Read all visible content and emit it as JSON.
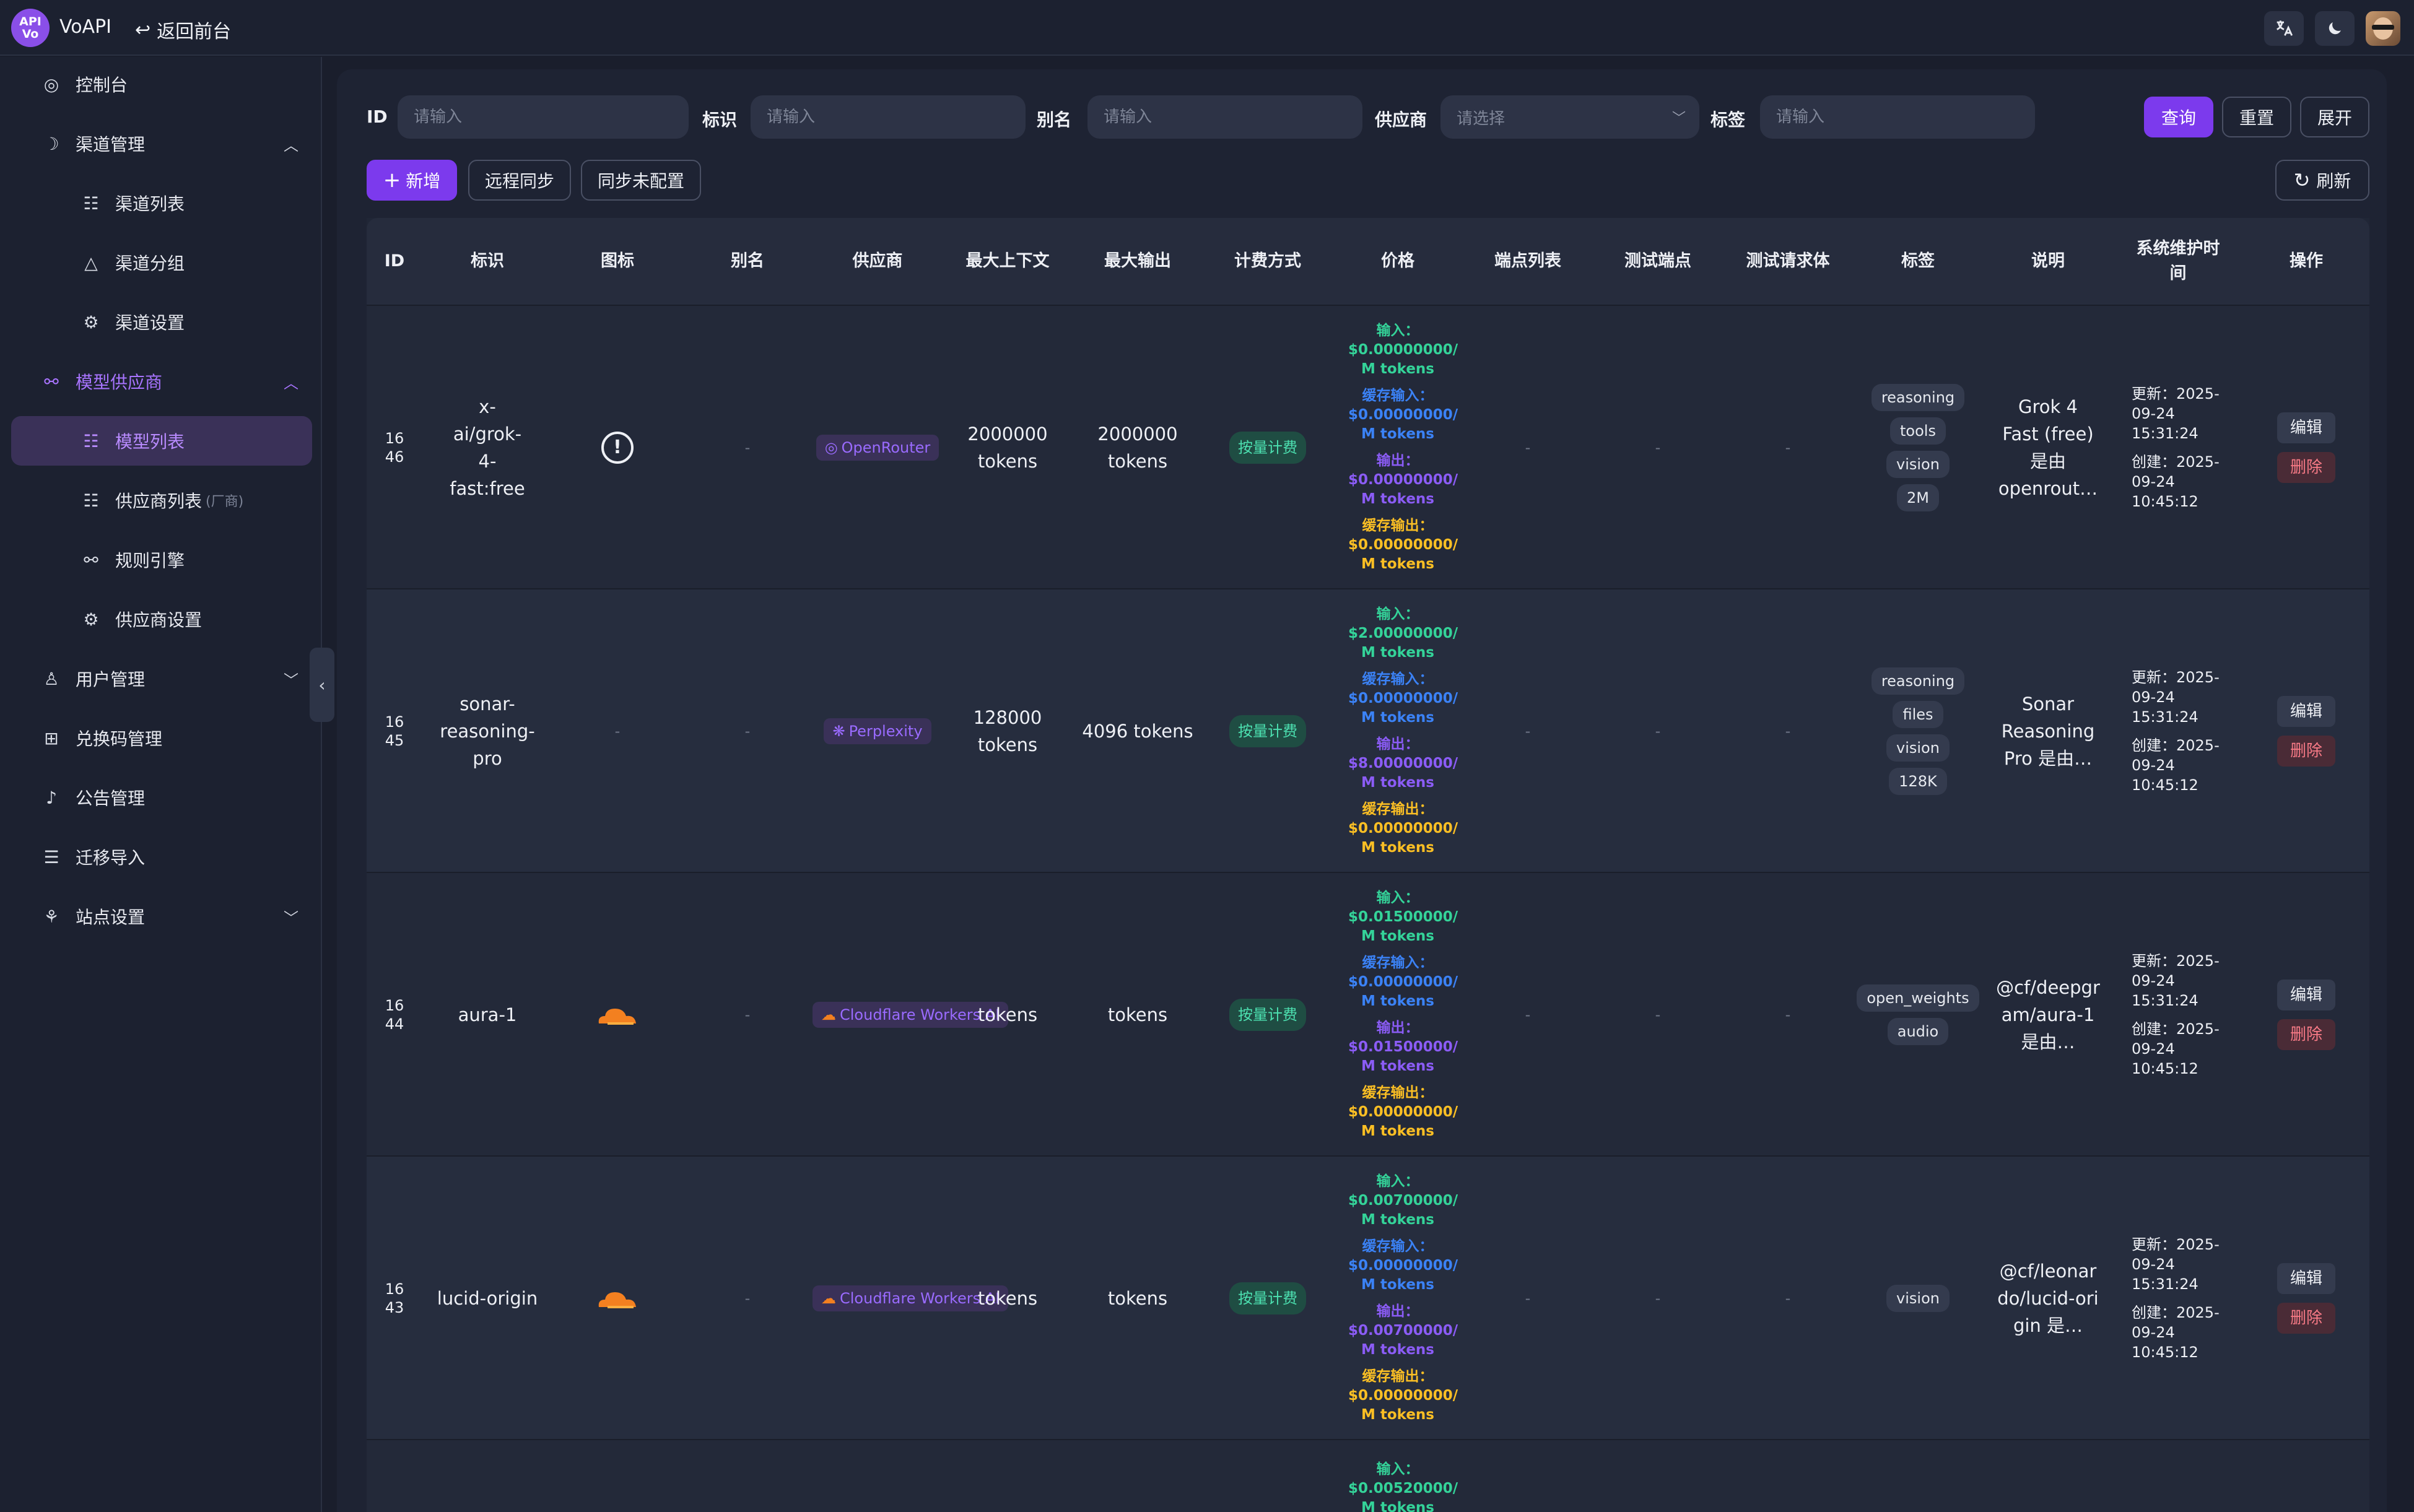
{
  "app": {
    "name": "VoAPI",
    "back_label": "返回前台",
    "logo_text_top": "API",
    "logo_text_bottom": "Vo"
  },
  "topbar": {
    "translate_icon": "translate-icon",
    "theme_icon": "moon-icon"
  },
  "sidebar": {
    "items": [
      {
        "label": "控制台",
        "icon": "dashboard-icon"
      },
      {
        "label": "渠道管理",
        "icon": "channel-icon"
      },
      {
        "label": "渠道列表",
        "icon": "list-icon"
      },
      {
        "label": "渠道分组",
        "icon": "group-icon"
      },
      {
        "label": "渠道设置",
        "icon": "gear-icon"
      },
      {
        "label": "模型供应商",
        "icon": "provider-icon"
      },
      {
        "label": "模型列表",
        "icon": "list-icon"
      },
      {
        "label": "供应商列表",
        "suffix": "(厂商)",
        "icon": "list-icon"
      },
      {
        "label": "规则引擎",
        "icon": "rule-icon"
      },
      {
        "label": "供应商设置",
        "icon": "gear-icon"
      },
      {
        "label": "用户管理",
        "icon": "user-icon"
      },
      {
        "label": "兑换码管理",
        "icon": "gift-icon"
      },
      {
        "label": "公告管理",
        "icon": "bell-icon"
      },
      {
        "label": "迁移导入",
        "icon": "database-icon"
      },
      {
        "label": "站点设置",
        "icon": "site-icon"
      }
    ]
  },
  "filters": {
    "id_label": "ID",
    "id_placeholder": "请输入",
    "mark_label": "标识",
    "mark_placeholder": "请输入",
    "alias_label": "别名",
    "alias_placeholder": "请输入",
    "vendor_label": "供应商",
    "vendor_placeholder": "请选择",
    "tag_label": "标签",
    "tag_placeholder": "请输入",
    "query": "查询",
    "reset": "重置",
    "expand": "展开"
  },
  "toolbar": {
    "add": "新增",
    "remote_sync": "远程同步",
    "sync_unconfigured": "同步未配置",
    "refresh": "刷新"
  },
  "table": {
    "columns": [
      "ID",
      "标识",
      "图标",
      "别名",
      "供应商",
      "最大上下文",
      "最大输出",
      "计费方式",
      "价格",
      "端点列表",
      "测试端点",
      "测试请求体",
      "标签",
      "说明",
      "系统维护时间",
      "操作"
    ],
    "price_labels": {
      "input": "输入：",
      "cache_input": "缓存输入：",
      "output": "输出：",
      "cache_output": "缓存输出："
    },
    "edit": "编辑",
    "delete": "删除",
    "dash": "-",
    "rows": [
      {
        "id_top": "16",
        "id_bottom": "46",
        "mark": "x-ai/grok-4-fast:free",
        "icon": "alert-icon",
        "alias": "-",
        "vendor": "OpenRouter",
        "max_context": "2000000 tokens",
        "max_output": "2000000 tokens",
        "billing": "按量计费",
        "price_input": "$0.00000000/ M tokens",
        "price_cache_input": "$0.00000000/ M tokens",
        "price_output": "$0.00000000/ M tokens",
        "price_cache_output": "$0.00000000/ M tokens",
        "endpoints": "-",
        "test_endpoint": "-",
        "test_body": "-",
        "tags": [
          "reasoning",
          "tools",
          "vision",
          "2M"
        ],
        "desc": "Grok 4 Fast (free) 是由 openrout…",
        "updated": "更新：2025-09-24 15:31:24",
        "created": "创建：2025-09-24 10:45:12"
      },
      {
        "id_top": "16",
        "id_bottom": "45",
        "mark": "sonar-reasoning-pro",
        "icon": "-",
        "alias": "-",
        "vendor": "Perplexity",
        "max_context": "128000 tokens",
        "max_output": "4096 tokens",
        "billing": "按量计费",
        "price_input": "$2.00000000/ M tokens",
        "price_cache_input": "$0.00000000/ M tokens",
        "price_output": "$8.00000000/ M tokens",
        "price_cache_output": "$0.00000000/ M tokens",
        "endpoints": "-",
        "test_endpoint": "-",
        "test_body": "-",
        "tags": [
          "reasoning",
          "files",
          "vision",
          "128K"
        ],
        "desc": "Sonar Reasoning Pro 是由…",
        "updated": "更新：2025-09-24 15:31:24",
        "created": "创建：2025-09-24 10:45:12"
      },
      {
        "id_top": "16",
        "id_bottom": "44",
        "mark": "aura-1",
        "icon": "cloudflare-icon",
        "alias": "-",
        "vendor": "Cloudflare Workers AI",
        "max_context": "tokens",
        "max_output": "tokens",
        "billing": "按量计费",
        "price_input": "$0.01500000/ M tokens",
        "price_cache_input": "$0.00000000/ M tokens",
        "price_output": "$0.01500000/ M tokens",
        "price_cache_output": "$0.00000000/ M tokens",
        "endpoints": "-",
        "test_endpoint": "-",
        "test_body": "-",
        "tags": [
          "open_weights",
          "audio"
        ],
        "desc": "@cf/deepgram/aura-1 是由…",
        "updated": "更新：2025-09-24 15:31:24",
        "created": "创建：2025-09-24 10:45:12"
      },
      {
        "id_top": "16",
        "id_bottom": "43",
        "mark": "lucid-origin",
        "icon": "cloudflare-icon",
        "alias": "-",
        "vendor": "Cloudflare Workers AI",
        "max_context": "tokens",
        "max_output": "tokens",
        "billing": "按量计费",
        "price_input": "$0.00700000/ M tokens",
        "price_cache_input": "$0.00000000/ M tokens",
        "price_output": "$0.00700000/ M tokens",
        "price_cache_output": "$0.00000000/ M tokens",
        "endpoints": "-",
        "test_endpoint": "-",
        "test_body": "-",
        "tags": [
          "vision"
        ],
        "desc": "@cf/leonardo/lucid-origin 是…",
        "updated": "更新：2025-09-24 15:31:24",
        "created": "创建：2025-09-24 10:45:12"
      }
    ],
    "partial_row": {
      "price_input": "$0.00520000/ M tokens"
    }
  },
  "colors": {
    "accent": "#7c3aed",
    "price_input": "#34d399",
    "price_cache_input": "#3b82f6",
    "price_output": "#8b5cf6",
    "price_cache_output": "#fbbf24"
  }
}
